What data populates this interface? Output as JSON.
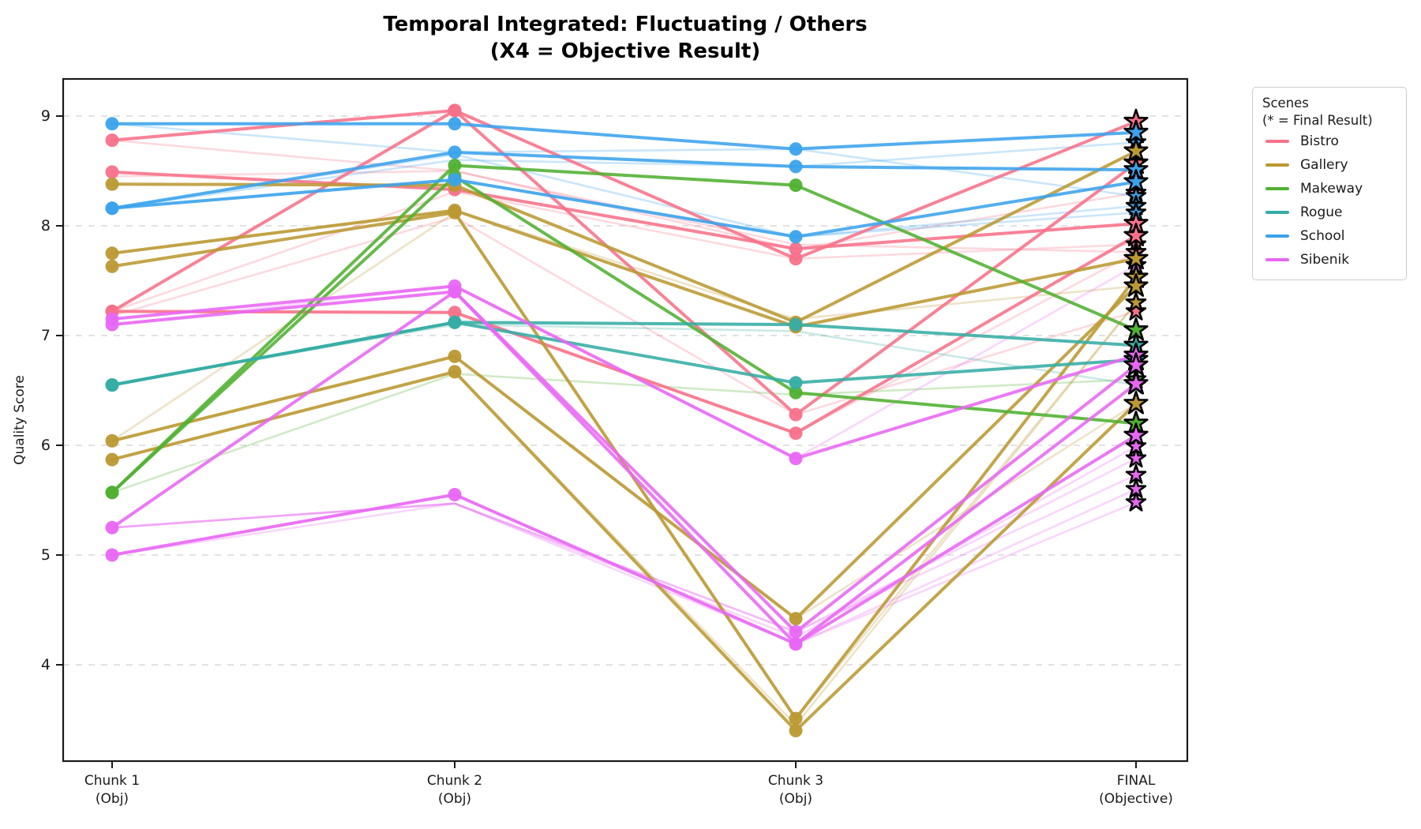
{
  "chart_data": {
    "type": "line",
    "title_line1": "Temporal Integrated: Fluctuating / Others",
    "title_line2": "(X4 = Objective Result)",
    "ylabel": "Quality Score",
    "yticks": [
      4,
      5,
      6,
      7,
      8,
      9
    ],
    "ylim": [
      3.1,
      9.35
    ],
    "grid": "horizontal-dashed",
    "x_categories": [
      {
        "line1": "Chunk 1",
        "line2": "(Obj)"
      },
      {
        "line1": "Chunk 2",
        "line2": "(Obj)"
      },
      {
        "line1": "Chunk 3",
        "line2": "(Obj)"
      },
      {
        "line1": "FINAL",
        "line2": "(Objective)"
      }
    ],
    "legend": {
      "title_line1": "Scenes",
      "title_line2": "(* = Final Result)",
      "position": "outside-upper-right"
    },
    "final_marker": "star",
    "scenes": [
      {
        "name": "Bistro",
        "color": "#f77189"
      },
      {
        "name": "Gallery",
        "color": "#bb9832"
      },
      {
        "name": "Makeway",
        "color": "#50b131"
      },
      {
        "name": "Rogue",
        "color": "#36ada4"
      },
      {
        "name": "School",
        "color": "#3ba3ec"
      },
      {
        "name": "Sibenik",
        "color": "#e866f4"
      }
    ],
    "series": [
      {
        "scene": "Bistro",
        "emphasis": "main",
        "values": [
          8.78,
          9.05,
          7.7,
          8.95
        ]
      },
      {
        "scene": "Bistro",
        "emphasis": "main",
        "values": [
          8.49,
          8.33,
          7.79,
          8.02
        ]
      },
      {
        "scene": "Bistro",
        "emphasis": "main",
        "values": [
          7.22,
          7.21,
          6.11,
          7.91
        ]
      },
      {
        "scene": "Bistro",
        "emphasis": "main",
        "values": [
          7.22,
          9.05,
          6.28,
          8.57
        ]
      },
      {
        "scene": "Bistro",
        "emphasis": "faded",
        "values": [
          8.45,
          8.5,
          7.83,
          7.76
        ]
      },
      {
        "scene": "Bistro",
        "emphasis": "faded",
        "values": [
          7.18,
          8.08,
          6.28,
          7.22
        ]
      },
      {
        "scene": "Bistro",
        "emphasis": "faded",
        "values": [
          7.22,
          8.31,
          7.7,
          7.83
        ]
      },
      {
        "scene": "Bistro",
        "emphasis": "faded",
        "values": [
          8.78,
          8.5,
          7.79,
          8.3
        ]
      },
      {
        "scene": "Bistro",
        "emphasis": "faded",
        "values": [
          7.22,
          7.21,
          6.11,
          7.76
        ]
      },
      {
        "scene": "Gallery",
        "emphasis": "main",
        "values": [
          8.38,
          8.37,
          7.12,
          8.68
        ]
      },
      {
        "scene": "Gallery",
        "emphasis": "main",
        "values": [
          7.75,
          8.14,
          7.08,
          7.7
        ]
      },
      {
        "scene": "Gallery",
        "emphasis": "main",
        "values": [
          7.63,
          8.12,
          3.51,
          7.53
        ]
      },
      {
        "scene": "Gallery",
        "emphasis": "main",
        "values": [
          6.04,
          6.81,
          4.42,
          7.45
        ]
      },
      {
        "scene": "Gallery",
        "emphasis": "main",
        "values": [
          5.87,
          6.67,
          3.4,
          6.38
        ]
      },
      {
        "scene": "Gallery",
        "emphasis": "faded",
        "values": [
          6.04,
          8.12,
          3.51,
          7.3
        ]
      },
      {
        "scene": "Gallery",
        "emphasis": "faded",
        "values": [
          7.75,
          8.14,
          7.15,
          7.45
        ]
      },
      {
        "scene": "Gallery",
        "emphasis": "faded",
        "values": [
          5.87,
          6.67,
          3.45,
          7.3
        ]
      },
      {
        "scene": "Gallery",
        "emphasis": "faded",
        "values": [
          6.04,
          6.81,
          4.42,
          6.38
        ]
      },
      {
        "scene": "Makeway",
        "emphasis": "main",
        "values": [
          5.57,
          8.55,
          8.37,
          7.05
        ]
      },
      {
        "scene": "Makeway",
        "emphasis": "main",
        "values": [
          5.57,
          8.45,
          6.48,
          6.2
        ]
      },
      {
        "scene": "Makeway",
        "emphasis": "faded",
        "values": [
          5.57,
          6.65,
          6.46,
          6.6
        ]
      },
      {
        "scene": "Rogue",
        "emphasis": "main",
        "values": [
          6.55,
          7.12,
          7.1,
          6.91
        ]
      },
      {
        "scene": "Rogue",
        "emphasis": "main",
        "values": [
          6.55,
          7.12,
          6.57,
          6.78
        ]
      },
      {
        "scene": "Rogue",
        "emphasis": "faded",
        "values": [
          6.55,
          7.1,
          7.04,
          6.55
        ]
      },
      {
        "scene": "School",
        "emphasis": "main",
        "values": [
          8.93,
          8.93,
          8.7,
          8.85
        ]
      },
      {
        "scene": "School",
        "emphasis": "main",
        "values": [
          8.16,
          8.67,
          8.54,
          8.51
        ]
      },
      {
        "scene": "School",
        "emphasis": "main",
        "values": [
          8.16,
          8.42,
          7.9,
          8.4
        ]
      },
      {
        "scene": "School",
        "emphasis": "faded",
        "values": [
          8.16,
          8.6,
          8.54,
          8.76
        ]
      },
      {
        "scene": "School",
        "emphasis": "faded",
        "values": [
          8.93,
          8.67,
          8.7,
          8.27
        ]
      },
      {
        "scene": "School",
        "emphasis": "faded",
        "values": [
          8.16,
          8.65,
          7.9,
          8.18
        ]
      },
      {
        "scene": "School",
        "emphasis": "faded",
        "values": [
          8.16,
          8.42,
          7.9,
          8.12
        ]
      },
      {
        "scene": "Sibenik",
        "emphasis": "main",
        "values": [
          7.15,
          7.45,
          5.88,
          6.82
        ]
      },
      {
        "scene": "Sibenik",
        "emphasis": "main",
        "values": [
          7.1,
          7.4,
          4.3,
          6.73
        ]
      },
      {
        "scene": "Sibenik",
        "emphasis": "main",
        "values": [
          5.25,
          7.4,
          4.19,
          6.56
        ]
      },
      {
        "scene": "Sibenik",
        "emphasis": "main",
        "values": [
          5.0,
          5.55,
          4.19,
          6.09
        ]
      },
      {
        "scene": "Sibenik",
        "emphasis": "faded",
        "values": [
          5.25,
          5.47,
          4.3,
          5.73
        ]
      },
      {
        "scene": "Sibenik",
        "emphasis": "faded",
        "values": [
          5.0,
          5.55,
          4.19,
          5.48
        ]
      },
      {
        "scene": "Sibenik",
        "emphasis": "faded",
        "values": [
          7.1,
          7.45,
          5.88,
          7.64
        ]
      },
      {
        "scene": "Sibenik",
        "emphasis": "faded",
        "values": [
          5.25,
          5.47,
          4.19,
          5.6
        ]
      },
      {
        "scene": "Sibenik",
        "emphasis": "faded",
        "values": [
          5.0,
          5.47,
          4.3,
          5.88
        ]
      },
      {
        "scene": "Sibenik",
        "emphasis": "faded",
        "values": [
          5.25,
          5.47,
          4.25,
          5.99
        ]
      }
    ]
  }
}
